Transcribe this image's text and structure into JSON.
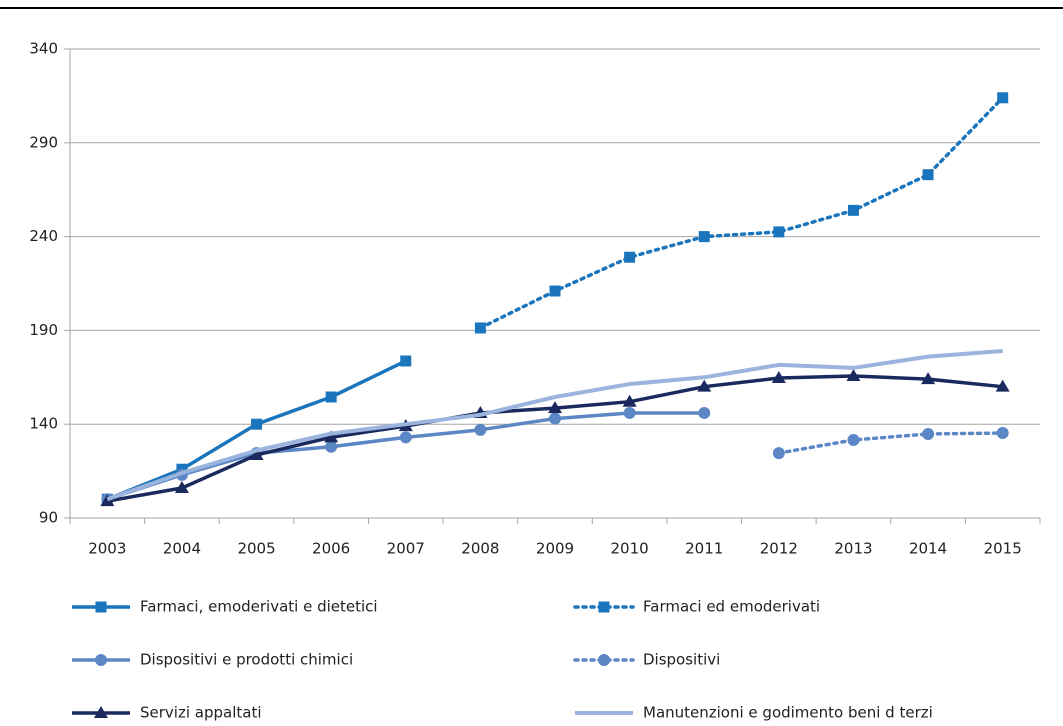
{
  "chart_data": {
    "type": "line",
    "categories": [
      "2003",
      "2004",
      "2005",
      "2006",
      "2007",
      "2008",
      "2009",
      "2010",
      "2011",
      "2012",
      "2013",
      "2014",
      "2015"
    ],
    "ylim": [
      90,
      340
    ],
    "yticks": [
      90,
      140,
      190,
      240,
      290,
      340
    ],
    "grid": true,
    "series": [
      {
        "name": "Farmaci, emoderivati e dietetici",
        "color": "#1a75bc",
        "style": "solid",
        "marker": "square",
        "values": [
          100,
          116,
          140,
          154.5,
          173.7,
          null,
          null,
          null,
          null,
          null,
          null,
          null,
          null
        ]
      },
      {
        "name": "Farmaci ed emoderivati",
        "color": "#1a75bc",
        "style": "dotted",
        "marker": "square",
        "values": [
          null,
          null,
          null,
          null,
          null,
          191.3,
          211,
          229,
          240,
          242.5,
          254,
          273,
          314
        ]
      },
      {
        "name": "Dispositivi e prodotti chimici",
        "color": "#5b87c5",
        "style": "solid",
        "marker": "circle",
        "values": [
          100,
          113,
          124.6,
          128,
          133,
          137,
          143,
          146,
          146,
          null,
          null,
          null,
          null
        ]
      },
      {
        "name": "Dispositivi",
        "color": "#5b87c5",
        "style": "dotted",
        "marker": "circle",
        "values": [
          null,
          null,
          null,
          null,
          null,
          null,
          null,
          null,
          null,
          124.6,
          131.6,
          134.8,
          135.3
        ]
      },
      {
        "name": "Servizi appaltati",
        "color": "#1b2a5e",
        "style": "solid",
        "marker": "triangle",
        "values": [
          99,
          106,
          123.6,
          133,
          139,
          146,
          148.6,
          152,
          160,
          164.6,
          165.7,
          164,
          160
        ]
      },
      {
        "name": "Manutenzioni e godimento beni d terzi",
        "color": "#9bb4de",
        "style": "solid",
        "marker": "none",
        "values": [
          100,
          114,
          126,
          135,
          140,
          145,
          154.5,
          161.4,
          165,
          171.6,
          170,
          176,
          179
        ]
      }
    ]
  }
}
